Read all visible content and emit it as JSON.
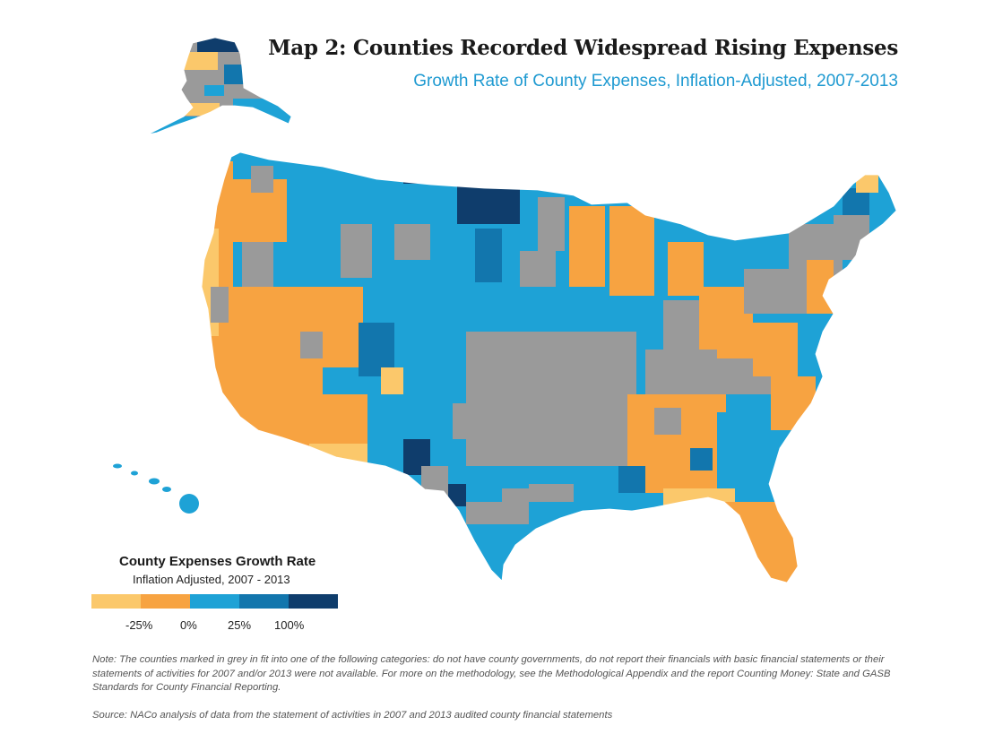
{
  "title": "Map 2: Counties Recorded Widespread Rising Expenses",
  "subtitle": "Growth Rate of County Expenses, Inflation-Adjusted, 2007-2013",
  "legend": {
    "title": "County Expenses Growth Rate",
    "subtitle": "Inflation Adjusted, 2007 - 2013",
    "colors": [
      "#fbc86b",
      "#f7a341",
      "#1ea2d6",
      "#1276ad",
      "#0f3d6c"
    ],
    "tick_labels": [
      "-25%",
      "0%",
      "25%",
      "100%"
    ]
  },
  "no_data_color": "#9a9a9a",
  "note": "Note: The counties marked in grey in fit into one of the following categories: do not have county governments, do not report their financials with basic financial statements or their statements of activities for 2007 and/or 2013 were not available. For more on the methodology, see the Methodological Appendix and the report Counting Money: State and GASB Standards for County Financial Reporting.",
  "source": "Source: NACo analysis of data from the statement of activities in 2007 and 2013 audited county financial statements"
}
